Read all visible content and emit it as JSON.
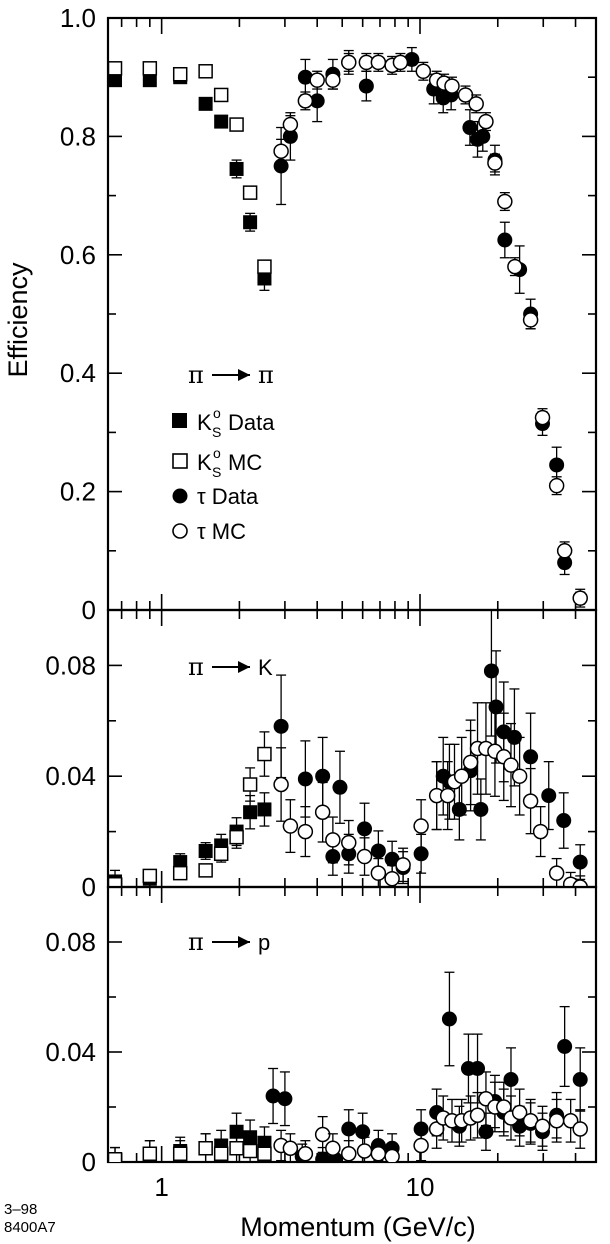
{
  "figure": {
    "ylabel": "Efficiency",
    "xlabel": "Momentum   (GeV/c)",
    "corner_label_1": "3–98",
    "corner_label_2": "8400A7"
  },
  "legend": {
    "ks_data": "Data",
    "ks_mc": "MC",
    "tau_data": "τ Data",
    "tau_mc": "τ MC",
    "ks_symbol": "K",
    "ks_super": "o",
    "ks_sub": "S"
  },
  "chart_data": [
    {
      "type": "scatter",
      "panel": "pi-to-pi",
      "label": "π → π",
      "x_scale": "log",
      "xlim": [
        0.62,
        48
      ],
      "ylim": [
        0,
        1.0
      ],
      "y_ticks": [
        "0",
        "0.2",
        "0.4",
        "0.6",
        "0.8",
        "1.0"
      ],
      "y_tick_values": [
        0,
        0.2,
        0.4,
        0.6,
        0.8,
        1.0
      ],
      "series": [
        {
          "name": "KS Data",
          "marker": "filled-square",
          "x": [
            0.66,
            0.9,
            1.18,
            1.48,
            1.7,
            1.95,
            2.2,
            2.5
          ],
          "y": [
            0.895,
            0.895,
            0.9,
            0.855,
            0.825,
            0.745,
            0.655,
            0.56
          ],
          "err": [
            0.01,
            0.01,
            0.01,
            0.01,
            0.01,
            0.015,
            0.015,
            0.02
          ]
        },
        {
          "name": "KS MC",
          "marker": "open-square",
          "x": [
            0.66,
            0.9,
            1.18,
            1.48,
            1.7,
            1.95,
            2.2,
            2.5
          ],
          "y": [
            0.915,
            0.915,
            0.905,
            0.91,
            0.87,
            0.82,
            0.705,
            0.58
          ],
          "err": [
            0,
            0,
            0,
            0,
            0,
            0,
            0,
            0
          ]
        },
        {
          "name": "τ Data",
          "marker": "filled-circle",
          "x": [
            2.9,
            3.15,
            3.6,
            4.0,
            4.6,
            5.3,
            6.2,
            9.3,
            11.3,
            12.3,
            13.2,
            15.6,
            16.7,
            17.5,
            19.5,
            21.3,
            24.3,
            26.8,
            29.8,
            33.8,
            36.3,
            41.7
          ],
          "y": [
            0.75,
            0.8,
            0.9,
            0.86,
            0.905,
            0.925,
            0.885,
            0.93,
            0.88,
            0.865,
            0.87,
            0.815,
            0.795,
            0.8,
            0.76,
            0.625,
            0.575,
            0.5,
            0.315,
            0.245,
            0.08,
            0.02
          ],
          "err": [
            0.065,
            0.04,
            0.03,
            0.035,
            0.025,
            0.02,
            0.025,
            0.02,
            0.025,
            0.025,
            0.025,
            0.03,
            0.03,
            0.025,
            0.025,
            0.03,
            0.04,
            0.025,
            0.02,
            0.03,
            0.02,
            0.01
          ]
        },
        {
          "name": "τ MC",
          "marker": "open-circle",
          "x": [
            2.9,
            3.15,
            3.6,
            4.0,
            4.6,
            5.3,
            6.2,
            6.9,
            7.8,
            8.4,
            10.3,
            11.6,
            12.4,
            13.3,
            15.0,
            16.5,
            18.0,
            19.5,
            21.3,
            23.3,
            26.8,
            29.8,
            33.8,
            36.3,
            41.7
          ],
          "y": [
            0.775,
            0.82,
            0.86,
            0.895,
            0.895,
            0.925,
            0.925,
            0.925,
            0.92,
            0.925,
            0.91,
            0.895,
            0.89,
            0.885,
            0.87,
            0.855,
            0.825,
            0.755,
            0.69,
            0.58,
            0.49,
            0.325,
            0.21,
            0.1,
            0.02
          ],
          "err": [
            0.02,
            0.015,
            0.015,
            0.015,
            0.015,
            0.015,
            0.015,
            0.015,
            0.015,
            0.015,
            0.015,
            0.015,
            0.015,
            0.015,
            0.015,
            0.015,
            0.015,
            0.015,
            0.015,
            0.015,
            0.015,
            0.015,
            0.015,
            0.015,
            0.015
          ]
        }
      ]
    },
    {
      "type": "scatter",
      "panel": "pi-to-K",
      "label": "π → K",
      "x_scale": "log",
      "xlim": [
        0.62,
        48
      ],
      "ylim": [
        0,
        0.1
      ],
      "y_ticks": [
        "0",
        "0.04",
        "0.08"
      ],
      "y_tick_values": [
        0,
        0.04,
        0.08
      ],
      "series": [
        {
          "name": "KS Data",
          "marker": "filled-square",
          "x": [
            0.66,
            0.9,
            1.18,
            1.48,
            1.7,
            1.95,
            2.2,
            2.5
          ],
          "y": [
            0.002,
            0.003,
            0.009,
            0.013,
            0.015,
            0.02,
            0.027,
            0.028
          ],
          "err": [
            0.004,
            0.003,
            0.003,
            0.003,
            0.004,
            0.005,
            0.006,
            0.006
          ]
        },
        {
          "name": "KS MC",
          "marker": "open-square",
          "x": [
            0.66,
            0.9,
            1.18,
            1.48,
            1.7,
            1.95,
            2.2,
            2.5
          ],
          "y": [
            0.001,
            0.004,
            0.005,
            0.006,
            0.012,
            0.018,
            0.037,
            0.048
          ],
          "err": [
            0.002,
            0.002,
            0.002,
            0.002,
            0.003,
            0.004,
            0.006,
            0.008
          ]
        },
        {
          "name": "τ Data",
          "marker": "filled-circle",
          "x": [
            2.9,
            3.6,
            4.2,
            4.6,
            4.9,
            5.3,
            6.1,
            6.9,
            7.8,
            8.6,
            10.1,
            11.6,
            12.3,
            13.0,
            14.2,
            15.7,
            17.2,
            18.9,
            19.7,
            21.1,
            23.2,
            26.8,
            31.5,
            36.0,
            41.7
          ],
          "y": [
            0.058,
            0.039,
            0.04,
            0.011,
            0.036,
            0.012,
            0.021,
            0.013,
            0.01,
            0.007,
            0.012,
            0.033,
            0.04,
            0.038,
            0.028,
            0.042,
            0.028,
            0.078,
            0.065,
            0.056,
            0.054,
            0.047,
            0.033,
            0.024,
            0.009
          ]
        },
        {
          "name": "τ MC",
          "marker": "open-circle",
          "x": [
            2.9,
            3.15,
            3.6,
            4.2,
            4.6,
            5.3,
            6.1,
            6.9,
            7.8,
            8.6,
            10.1,
            11.6,
            12.8,
            13.6,
            14.5,
            15.7,
            16.7,
            18.0,
            19.5,
            21.1,
            22.5,
            24.3,
            26.8,
            29.3,
            33.8,
            38.3,
            41.7
          ],
          "y": [
            0.037,
            0.022,
            0.02,
            0.027,
            0.017,
            0.016,
            0.011,
            0.005,
            0.003,
            0.008,
            0.022,
            0.033,
            0.033,
            0.038,
            0.04,
            0.045,
            0.05,
            0.05,
            0.049,
            0.047,
            0.044,
            0.04,
            0.031,
            0.02,
            0.005,
            0.001,
            0.0
          ]
        }
      ]
    },
    {
      "type": "scatter",
      "panel": "pi-to-p",
      "label": "π → p",
      "x_scale": "log",
      "xlim": [
        0.62,
        48
      ],
      "ylim": [
        0,
        0.1
      ],
      "y_ticks": [
        "0",
        "0.04",
        "0.08"
      ],
      "y_tick_values": [
        0,
        0.04,
        0.08
      ],
      "x_ticks": [
        "1",
        "10"
      ],
      "x_tick_values": [
        1,
        10
      ],
      "series": [
        {
          "name": "KS Data",
          "marker": "filled-square",
          "x": [
            0.66,
            0.9,
            1.18,
            1.48,
            1.7,
            1.95,
            2.2,
            2.5
          ],
          "y": [
            0.001,
            0.003,
            0.004,
            0.005,
            0.006,
            0.011,
            0.009,
            0.007
          ]
        },
        {
          "name": "KS MC",
          "marker": "open-square",
          "x": [
            0.66,
            0.9,
            1.18,
            1.48,
            1.7,
            1.95,
            2.2,
            2.5
          ],
          "y": [
            0.001,
            0.003,
            0.003,
            0.005,
            0.003,
            0.005,
            0.004,
            0.003
          ]
        },
        {
          "name": "τ Data",
          "marker": "filled-circle",
          "x": [
            2.7,
            3.0,
            3.5,
            4.2,
            4.7,
            5.3,
            6.0,
            6.9,
            7.8,
            10.1,
            11.6,
            13.0,
            14.2,
            15.4,
            16.7,
            18.0,
            19.5,
            21.1,
            22.5,
            24.3,
            26.8,
            29.8,
            33.8,
            36.3,
            41.7
          ],
          "y": [
            0.024,
            0.023,
            0.002,
            0.001,
            0.001,
            0.012,
            0.011,
            0.006,
            0.005,
            0.012,
            0.018,
            0.052,
            0.013,
            0.034,
            0.034,
            0.011,
            0.022,
            0.018,
            0.03,
            0.013,
            0.014,
            0.011,
            0.017,
            0.042,
            0.03
          ]
        },
        {
          "name": "τ MC",
          "marker": "open-circle",
          "x": [
            2.9,
            3.15,
            3.6,
            4.2,
            4.6,
            5.3,
            6.1,
            6.9,
            7.8,
            10.1,
            11.6,
            12.3,
            13.3,
            14.5,
            15.7,
            16.7,
            18.0,
            19.5,
            21.1,
            22.5,
            24.3,
            26.8,
            29.8,
            33.8,
            38.3,
            41.7
          ],
          "y": [
            0.006,
            0.005,
            0.003,
            0.01,
            0.005,
            0.003,
            0.004,
            0.003,
            0.002,
            0.006,
            0.012,
            0.016,
            0.015,
            0.015,
            0.016,
            0.017,
            0.023,
            0.02,
            0.02,
            0.016,
            0.018,
            0.015,
            0.013,
            0.015,
            0.015,
            0.012
          ]
        }
      ]
    }
  ]
}
